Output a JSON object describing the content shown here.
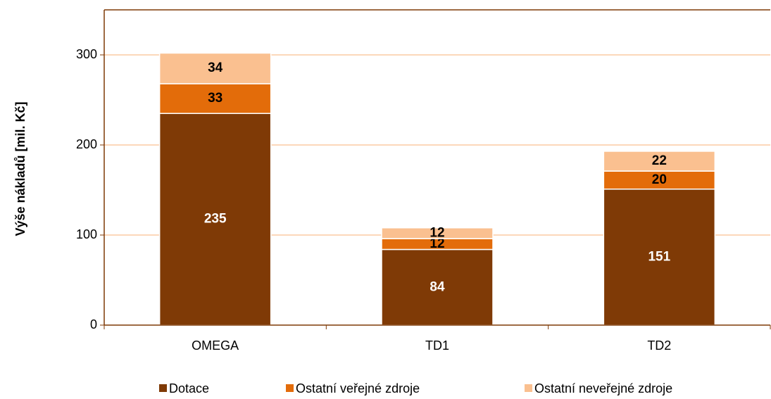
{
  "chart_data": {
    "type": "stacked_bar",
    "y_label": "Výše nákladů [mil. Kč]",
    "categories": [
      "OMEGA",
      "TD1",
      "TD2"
    ],
    "series": [
      {
        "name": "Dotace",
        "color": "#7f3a06",
        "label_color": "#ffffff",
        "values": [
          235,
          84,
          151
        ]
      },
      {
        "name": "Ostatní veřejné zdroje",
        "color": "#e36c0a",
        "label_color": "#000000",
        "values": [
          33,
          12,
          20
        ]
      },
      {
        "name": "Ostatní neveřejné zdroje",
        "color": "#fac090",
        "label_color": "#000000",
        "values": [
          34,
          12,
          22
        ]
      }
    ],
    "ylim": [
      0,
      350
    ],
    "yticks": [
      0,
      100,
      200,
      300
    ],
    "grid": true,
    "legend": "bottom"
  }
}
